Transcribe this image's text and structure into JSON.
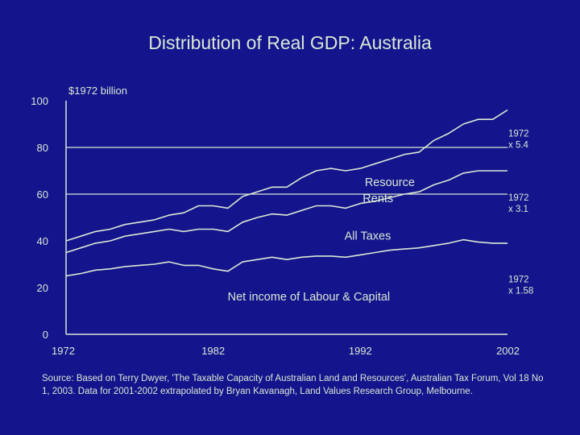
{
  "title": "Distribution of Real GDP: Australia",
  "source": "Source: Based on Terry Dwyer, 'The Taxable Capacity of Australian Land and Resources', Australian Tax Forum, Vol 18 No 1, 2003. Data for 2001-2002 extrapolated by Bryan Kavanagh, Land Values Research Group, Melbourne.",
  "colors": {
    "background": "#14148c",
    "foreground": "#d9e8d4"
  },
  "chart_data": {
    "type": "line",
    "ylabel": "$1972 billion",
    "ylim": [
      0,
      100
    ],
    "xlim": [
      1972,
      2002
    ],
    "yticks": [
      0,
      20,
      40,
      60,
      80,
      100
    ],
    "xticks": [
      1972,
      1982,
      1992,
      2002
    ],
    "grid": "horizontal at 60 and 80",
    "x": [
      1972,
      1973,
      1974,
      1975,
      1976,
      1977,
      1978,
      1979,
      1980,
      1981,
      1982,
      1983,
      1984,
      1985,
      1986,
      1987,
      1988,
      1989,
      1990,
      1991,
      1992,
      1993,
      1994,
      1995,
      1996,
      1997,
      1998,
      1999,
      2000,
      2001,
      2002
    ],
    "series": [
      {
        "values": [
          25,
          26,
          27.5,
          28,
          29,
          29.5,
          30,
          31,
          29.5,
          29.5,
          28,
          27,
          31,
          32,
          33,
          32,
          33,
          33.5,
          33.5,
          33,
          34,
          35,
          36,
          36.5,
          37,
          38,
          39,
          40.5,
          39.5,
          39,
          39
        ]
      },
      {
        "values": [
          35,
          37,
          39,
          40,
          42,
          43,
          44,
          45,
          44,
          45,
          45,
          44,
          48,
          50,
          51.5,
          51,
          53,
          55,
          55,
          54,
          56,
          57,
          58.5,
          60,
          61,
          64,
          66,
          69,
          70,
          70,
          70
        ]
      },
      {
        "values": [
          40,
          42,
          44,
          45,
          47,
          48,
          49,
          51,
          52,
          55,
          55,
          54,
          59,
          61,
          63,
          63,
          67,
          70,
          71,
          70,
          71,
          73,
          75,
          77,
          78,
          83,
          86,
          90,
          92,
          92,
          96
        ]
      }
    ],
    "annotations": [
      {
        "text": "Resource",
        "x": 1994,
        "y": 63.5
      },
      {
        "text": "Rents",
        "x": 1993.2,
        "y": 56.5
      },
      {
        "text": "All Taxes",
        "x": 1992.5,
        "y": 40.5
      },
      {
        "text": "Net income of Labour & Capital",
        "x": 1988.5,
        "y": 14.5
      }
    ],
    "right_labels": [
      {
        "lines": [
          "1972",
          "x 5.4"
        ],
        "y": 83
      },
      {
        "lines": [
          "1972",
          "x 3.1"
        ],
        "y": 55.5
      },
      {
        "lines": [
          "1972",
          "x 1.58"
        ],
        "y": 20.5
      }
    ]
  }
}
